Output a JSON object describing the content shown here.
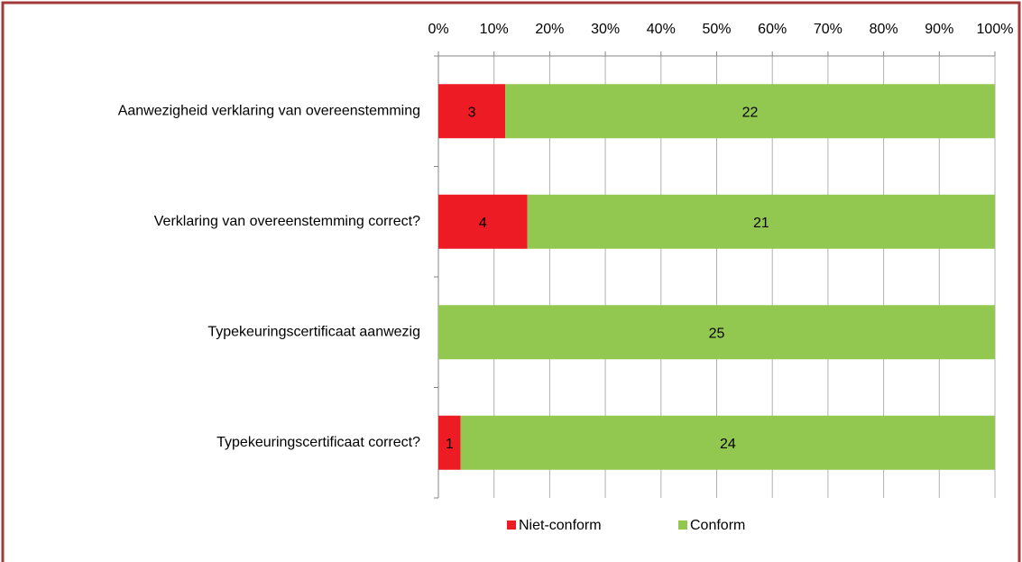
{
  "chart_data": {
    "type": "bar",
    "orientation": "horizontal",
    "percent_stacked": true,
    "categories": [
      "Aanwezigheid verklaring van overeenstemming",
      "Verklaring van overeenstemming correct?",
      "Typekeuringscertificaat aanwezig",
      "Typekeuringscertificaat correct?"
    ],
    "series": [
      {
        "name": "Niet-conform",
        "color": "#ed1c24",
        "values": [
          3,
          4,
          0,
          1
        ]
      },
      {
        "name": "Conform",
        "color": "#92c84f",
        "values": [
          22,
          21,
          25,
          24
        ]
      }
    ],
    "xlim": [
      0,
      100
    ],
    "xticks": [
      {
        "value": 0,
        "label": "0%"
      },
      {
        "value": 10,
        "label": "10%"
      },
      {
        "value": 20,
        "label": "20%"
      },
      {
        "value": 30,
        "label": "30%"
      },
      {
        "value": 40,
        "label": "40%"
      },
      {
        "value": 50,
        "label": "50%"
      },
      {
        "value": 60,
        "label": "60%"
      },
      {
        "value": 70,
        "label": "70%"
      },
      {
        "value": 80,
        "label": "80%"
      },
      {
        "value": 90,
        "label": "90%"
      },
      {
        "value": 100,
        "label": "100%"
      }
    ],
    "grid": true,
    "legend": "bottom"
  }
}
